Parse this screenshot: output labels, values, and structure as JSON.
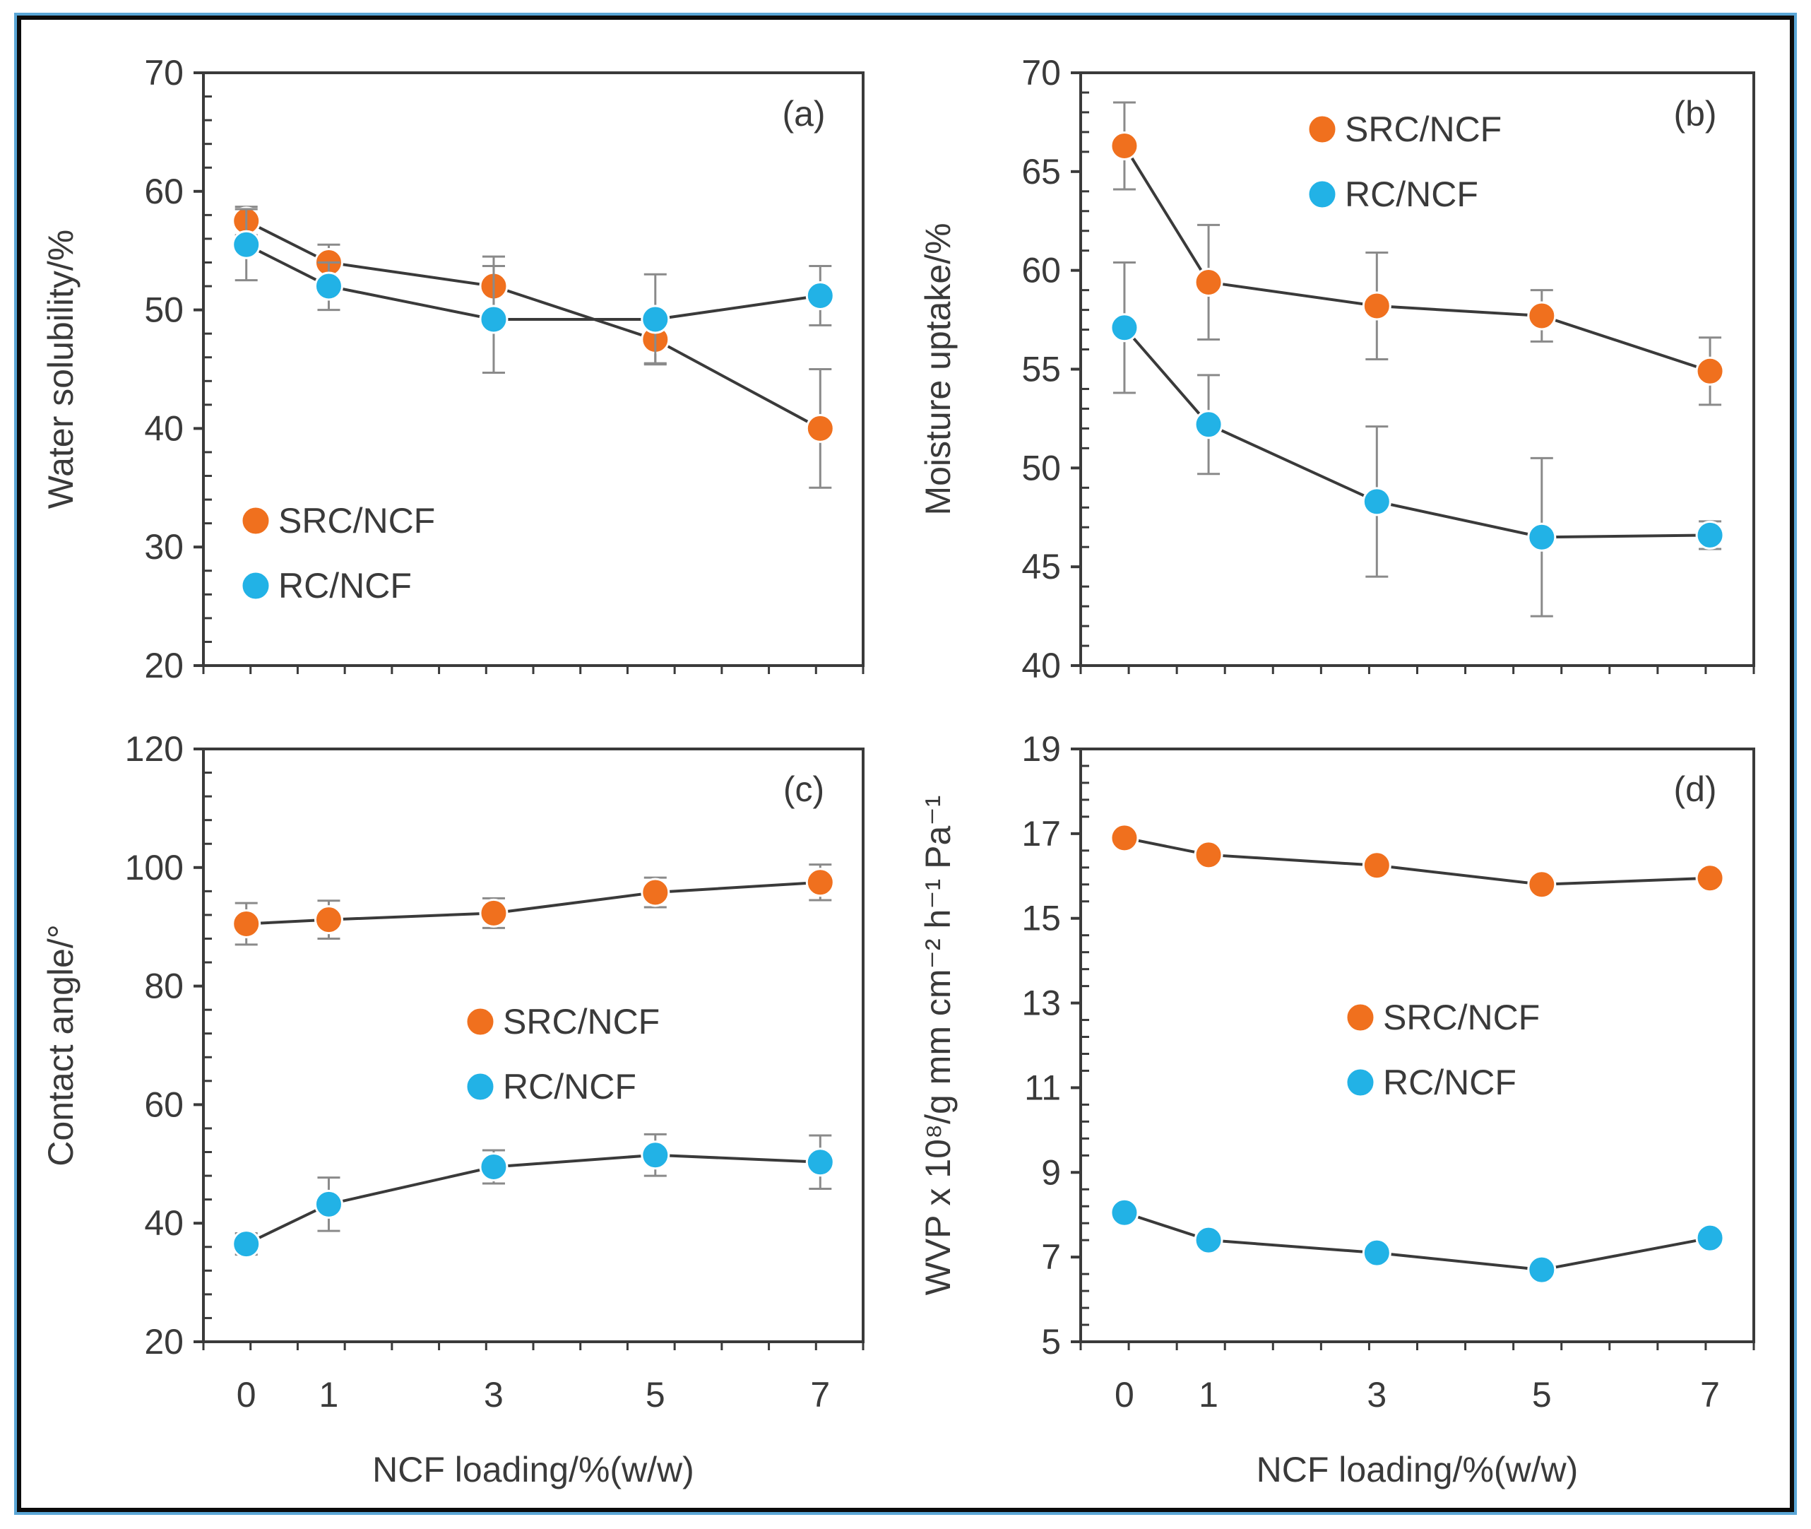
{
  "figure": {
    "marker_colors": {
      "SRC/NCF": "#f0701e",
      "RC/NCF": "#22b2e6"
    },
    "line_color": "#3a3a3a",
    "axis_color": "#3a3a3a"
  },
  "chart_data": [
    {
      "id": "a",
      "type": "line",
      "panel_label": "(a)",
      "xlabel": "",
      "ylabel": "Water solubility/%",
      "x": [
        0,
        1,
        3,
        5,
        7
      ],
      "xticks": [
        "0",
        "1",
        "3",
        "5",
        "7"
      ],
      "show_xticks": false,
      "ylim": [
        20,
        70
      ],
      "yticks": [
        20,
        30,
        40,
        50,
        60,
        70
      ],
      "legend": {
        "entries": [
          "SRC/NCF",
          "RC/NCF"
        ],
        "placement": "bottom-left"
      },
      "series": [
        {
          "name": "SRC/NCF",
          "values": [
            57.5,
            54,
            52,
            47.5,
            40
          ],
          "errors": [
            1.2,
            1.5,
            2.5,
            2,
            5
          ]
        },
        {
          "name": "RC/NCF",
          "values": [
            55.5,
            52,
            49.2,
            49.2,
            51.2
          ],
          "errors": [
            3,
            2,
            4.5,
            3.8,
            2.5
          ]
        }
      ]
    },
    {
      "id": "b",
      "type": "line",
      "panel_label": "(b)",
      "xlabel": "",
      "ylabel": "Moisture uptake/%",
      "x": [
        0,
        1,
        3,
        5,
        7
      ],
      "xticks": [
        "0",
        "1",
        "3",
        "5",
        "7"
      ],
      "show_xticks": false,
      "ylim": [
        40,
        70
      ],
      "yticks": [
        40,
        45,
        50,
        55,
        60,
        65,
        70
      ],
      "legend": {
        "entries": [
          "SRC/NCF",
          "RC/NCF"
        ],
        "placement": "top-center"
      },
      "series": [
        {
          "name": "SRC/NCF",
          "values": [
            66.3,
            59.4,
            58.2,
            57.7,
            54.9
          ],
          "errors": [
            2.2,
            2.9,
            2.7,
            1.3,
            1.7
          ]
        },
        {
          "name": "RC/NCF",
          "values": [
            57.1,
            52.2,
            48.3,
            46.5,
            46.6
          ],
          "errors": [
            3.3,
            2.5,
            3.8,
            4,
            0.7
          ]
        }
      ]
    },
    {
      "id": "c",
      "type": "line",
      "panel_label": "(c)",
      "xlabel": "NCF loading/%(w/w)",
      "ylabel": "Contact angle/°",
      "x": [
        0,
        1,
        3,
        5,
        7
      ],
      "xticks": [
        "0",
        "1",
        "3",
        "5",
        "7"
      ],
      "show_xticks": true,
      "ylim": [
        20,
        120
      ],
      "yticks": [
        20,
        40,
        60,
        80,
        100,
        120
      ],
      "legend": {
        "entries": [
          "SRC/NCF",
          "RC/NCF"
        ],
        "placement": "center-right"
      },
      "series": [
        {
          "name": "SRC/NCF",
          "values": [
            90.5,
            91.2,
            92.3,
            95.8,
            97.5
          ],
          "errors": [
            3.5,
            3.2,
            2.5,
            2.5,
            3
          ]
        },
        {
          "name": "RC/NCF",
          "values": [
            36.5,
            43.2,
            49.5,
            51.5,
            50.3
          ],
          "errors": [
            1.8,
            4.5,
            2.8,
            3.5,
            4.5
          ]
        }
      ]
    },
    {
      "id": "d",
      "type": "line",
      "panel_label": "(d)",
      "xlabel": "NCF loading/%(w/w)",
      "ylabel": "WVP x 10⁸/g mm cm⁻² h⁻¹ Pa⁻¹",
      "x": [
        0,
        1,
        3,
        5,
        7
      ],
      "xticks": [
        "0",
        "1",
        "3",
        "5",
        "7"
      ],
      "show_xticks": true,
      "ylim": [
        5,
        19
      ],
      "yticks": [
        5,
        7,
        9,
        11,
        13,
        15,
        17,
        19
      ],
      "legend": {
        "entries": [
          "SRC/NCF",
          "RC/NCF"
        ],
        "placement": "center-right"
      },
      "series": [
        {
          "name": "SRC/NCF",
          "values": [
            16.9,
            16.5,
            16.25,
            15.8,
            15.95
          ],
          "errors": [
            0,
            0,
            0,
            0,
            0
          ]
        },
        {
          "name": "RC/NCF",
          "values": [
            8.05,
            7.4,
            7.1,
            6.7,
            7.45
          ],
          "errors": [
            0,
            0,
            0,
            0,
            0
          ]
        }
      ]
    }
  ]
}
